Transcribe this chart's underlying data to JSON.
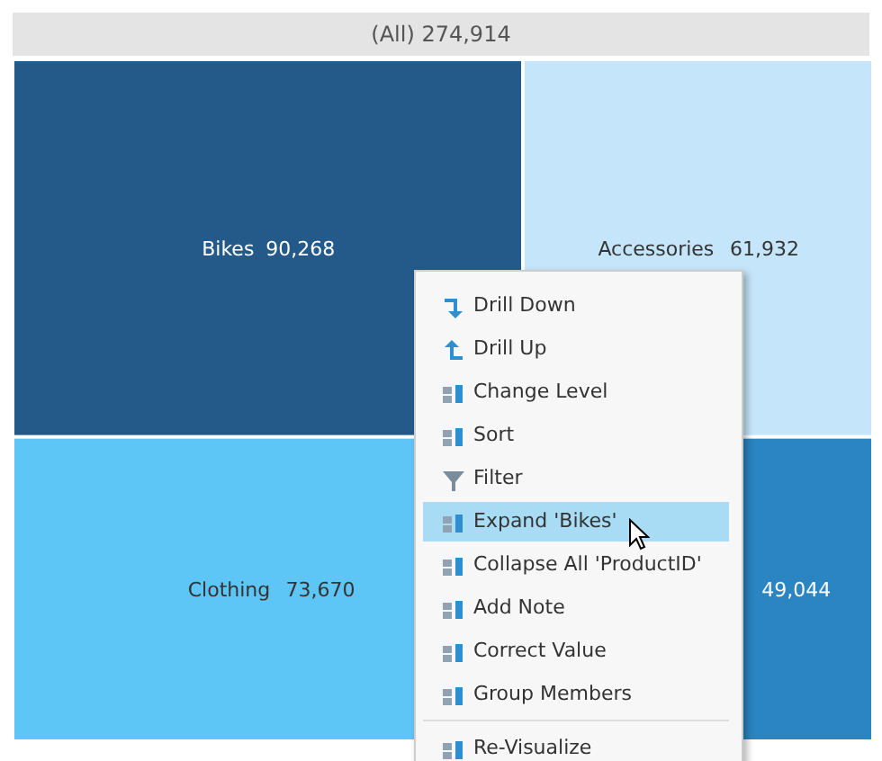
{
  "chart_data": {
    "type": "other",
    "title": "(All) 274,914",
    "categories": [
      "Bikes",
      "Accessories",
      "Clothing",
      null
    ],
    "values": [
      90268,
      61932,
      73670,
      49044
    ],
    "colors": [
      "#245a8a",
      "#c5e6fa",
      "#5ec6f6",
      "#2a85c2"
    ],
    "value_labels": [
      "90,268",
      "61,932",
      "73,670",
      "49,044"
    ],
    "annotations": [
      "Drill Down",
      "Drill Up",
      "Change Level",
      "Sort",
      "Filter",
      "Expand 'Bikes'",
      "Collapse All 'ProductID'",
      "Add Note",
      "Correct Value",
      "Group Members",
      "Re-Visualize"
    ]
  }
}
